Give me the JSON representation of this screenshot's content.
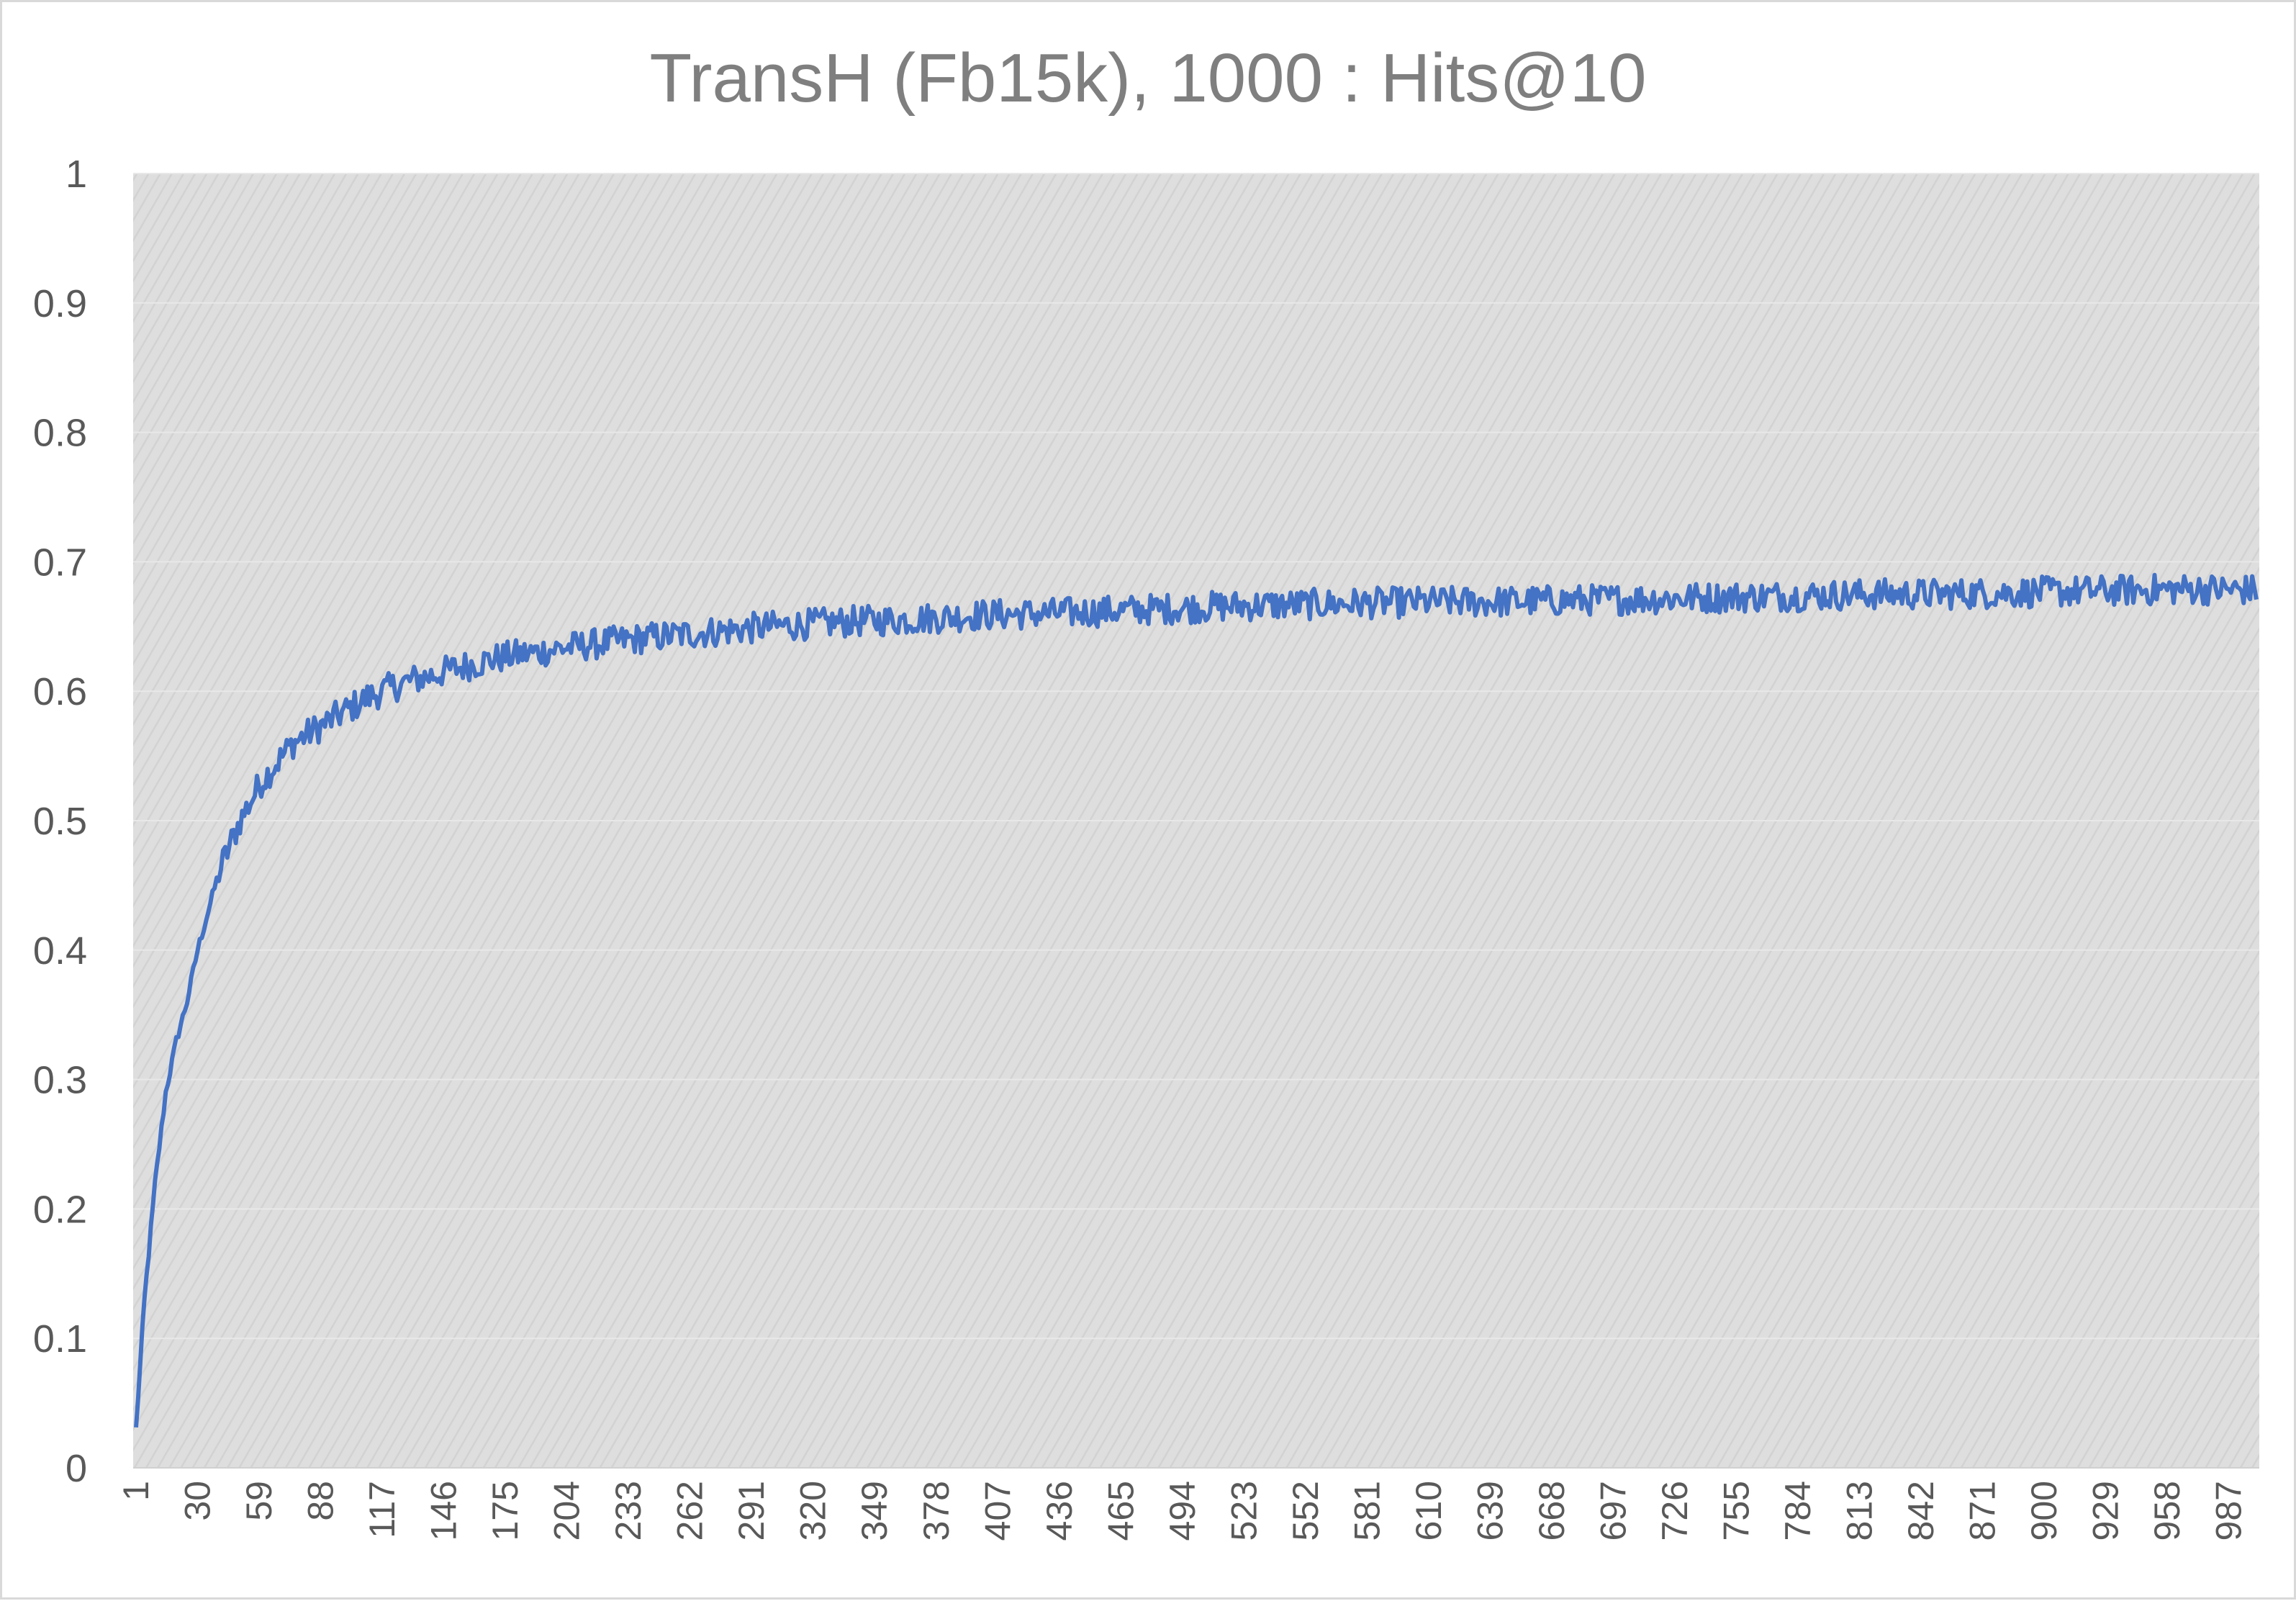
{
  "chart_data": {
    "type": "line",
    "title": "TransH (Fb15k), 1000 : Hits@10",
    "xlabel": "",
    "ylabel": "",
    "xlim": [
      1,
      1000
    ],
    "ylim": [
      0,
      1
    ],
    "y_ticks": [
      "0",
      "0.1",
      "0.2",
      "0.3",
      "0.4",
      "0.5",
      "0.6",
      "0.7",
      "0.8",
      "0.9",
      "1"
    ],
    "x_tick_labels": [
      "1",
      "30",
      "59",
      "88",
      "117",
      "146",
      "175",
      "204",
      "233",
      "262",
      "291",
      "320",
      "349",
      "378",
      "407",
      "436",
      "465",
      "494",
      "523",
      "552",
      "581",
      "610",
      "639",
      "668",
      "697",
      "726",
      "755",
      "784",
      "813",
      "842",
      "871",
      "900",
      "929",
      "958",
      "987"
    ],
    "grid": true,
    "legend": "none",
    "series_color": "#4472c4",
    "series": [
      {
        "x": [
          1,
          5,
          10,
          15,
          20,
          25,
          30,
          35,
          40,
          45,
          50,
          55,
          60,
          65,
          70,
          75,
          80,
          85,
          90,
          95,
          100,
          110,
          120,
          130,
          140,
          150,
          160,
          170,
          180,
          190,
          200,
          220,
          240,
          260,
          280,
          300,
          320,
          340,
          360,
          380,
          400,
          430,
          460,
          490,
          520,
          550,
          580,
          610,
          640,
          670,
          700,
          730,
          760,
          790,
          820,
          850,
          880,
          910,
          940,
          970,
          1000
        ],
        "values": [
          0.03,
          0.13,
          0.22,
          0.29,
          0.33,
          0.36,
          0.4,
          0.43,
          0.46,
          0.48,
          0.5,
          0.515,
          0.53,
          0.54,
          0.55,
          0.56,
          0.565,
          0.57,
          0.575,
          0.58,
          0.585,
          0.595,
          0.602,
          0.608,
          0.612,
          0.617,
          0.621,
          0.625,
          0.628,
          0.63,
          0.633,
          0.637,
          0.641,
          0.644,
          0.647,
          0.65,
          0.652,
          0.654,
          0.655,
          0.657,
          0.659,
          0.66,
          0.662,
          0.664,
          0.666,
          0.667,
          0.668,
          0.669,
          0.669,
          0.67,
          0.671,
          0.672,
          0.673,
          0.674,
          0.675,
          0.675,
          0.676,
          0.677,
          0.678,
          0.679,
          0.678
        ]
      }
    ]
  }
}
